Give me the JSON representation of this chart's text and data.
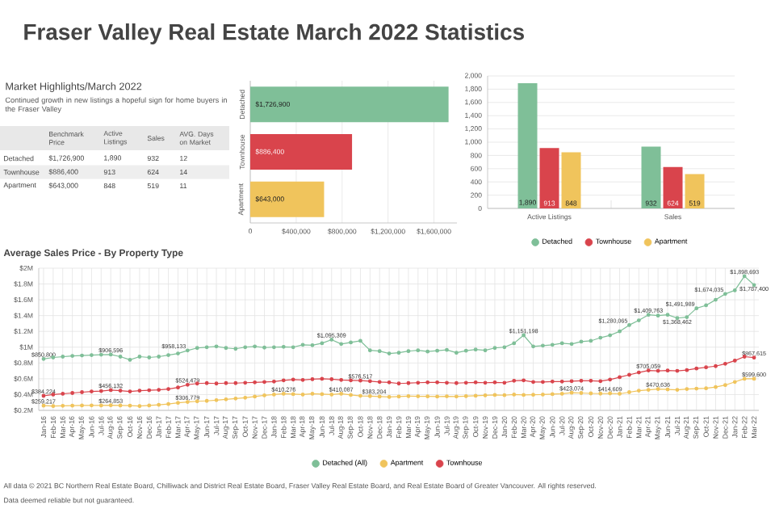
{
  "chart_data": [
    {
      "type": "other",
      "title": "Fraser Valley Real Estate March 2022 Statistics",
      "subtitle": "Market Highlights/March 2022",
      "annotations": [
        "Continued growth in new listings a hopeful sign for home buyers in the Fraser Valley"
      ],
      "categories": [
        "Benchmark Price",
        "Active Listings",
        "Sales",
        "AVG. Days on Market"
      ],
      "y_categories": [
        "Detached",
        "Townhouse",
        "Apartment"
      ],
      "cell_labels": [
        [
          "$1,726,900",
          "1,890",
          "932",
          "12"
        ],
        [
          "$886,400",
          "913",
          "624",
          "14"
        ],
        [
          "$643,000",
          "848",
          "519",
          "11"
        ]
      ]
    },
    {
      "type": "bar",
      "orientation": "horizontal",
      "categories": [
        "Detached",
        "Townhouse",
        "Apartment"
      ],
      "values": [
        1726900,
        886400,
        643000
      ],
      "colors": [
        "#7fbf98",
        "#d9444c",
        "#f0c45c"
      ],
      "value_labels": [
        "$1,726,900",
        "$886,400",
        "$643,000"
      ],
      "xlim": [
        0,
        1800000
      ],
      "xticks": [
        0,
        {
          "value": 400000,
          "label": "$400,000"
        },
        {
          "value": 800000,
          "label": "$800,000"
        },
        {
          "value": 1200000,
          "label": "$1,200,000"
        },
        {
          "value": 1600000,
          "label": "$1,600,000"
        }
      ],
      "grid": "x"
    },
    {
      "type": "bar",
      "categories": [
        "Active Listings",
        "Sales"
      ],
      "series": [
        {
          "name": "Detached",
          "color": "#7fbf98",
          "values": [
            1890,
            932
          ],
          "value_labels": [
            "1,890",
            "932"
          ]
        },
        {
          "name": "Townhouse",
          "color": "#d9444c",
          "values": [
            913,
            624
          ],
          "value_labels": [
            "913",
            "624"
          ]
        },
        {
          "name": "Apartment",
          "color": "#f0c45c",
          "values": [
            848,
            519
          ],
          "value_labels": [
            "848",
            "519"
          ]
        }
      ],
      "ylim": [
        0,
        2000
      ],
      "yticks": [
        0,
        200,
        400,
        600,
        800,
        {
          "value": 1000,
          "label": "1,000"
        },
        {
          "value": 1200,
          "label": "1,200"
        },
        {
          "value": 1400,
          "label": "1,400"
        },
        {
          "value": 1600,
          "label": "1,600"
        },
        {
          "value": 1800,
          "label": "1,800"
        },
        {
          "value": 2000,
          "label": "2,000"
        }
      ],
      "grid": "y",
      "legend": "bottom"
    },
    {
      "type": "line",
      "title": "Average Sales Price - By Property Type",
      "marker": "circle",
      "grid": true,
      "legend": "bottom",
      "categories": [
        "Jan-16",
        "Feb-16",
        "Mar-16",
        "Apr-16",
        "May-16",
        "Jun-16",
        "Jul-16",
        "Aug-16",
        "Sep-16",
        "Oct-16",
        "Nov-16",
        "Dec-16",
        "Jan-17",
        "Feb-17",
        "Mar-17",
        "Apr-17",
        "May-17",
        "Jun-17",
        "Jul-17",
        "Aug-17",
        "Sep-17",
        "Oct-17",
        "Nov-17",
        "Dec-17",
        "Jan-18",
        "Feb-18",
        "Mar-18",
        "Apr-18",
        "May-18",
        "Jun-18",
        "Jul-18",
        "Aug-18",
        "Sep-18",
        "Oct-18",
        "Nov-18",
        "Dec-18",
        "Jan-19",
        "Feb-19",
        "Mar-19",
        "Apr-19",
        "May-19",
        "Jun-19",
        "Jul-19",
        "Aug-19",
        "Sep-19",
        "Oct-19",
        "Nov-19",
        "Dec-19",
        "Jan-20",
        "Feb-20",
        "Mar-20",
        "Apr-20",
        "May-20",
        "Jun-20",
        "Jul-20",
        "Aug-20",
        "Sep-20",
        "Oct-20",
        "Nov-20",
        "Dec-20",
        "Jan-21",
        "Feb-21",
        "Mar-21",
        "Apr-21",
        "May-21",
        "Jun-21",
        "Jul-21",
        "Aug-21",
        "Sep-21",
        "Oct-21",
        "Nov-21",
        "Dec-21",
        "Jan-22",
        "Feb-22",
        "Mar-22"
      ],
      "series": [
        {
          "name": "Detached (All)",
          "color": "#7fbf98",
          "values": [
            850800,
            870000,
            880000,
            890000,
            895000,
            900000,
            905000,
            906596,
            880000,
            840000,
            880000,
            870000,
            880000,
            900000,
            920000,
            958133,
            990000,
            1000000,
            1010000,
            990000,
            980000,
            1000000,
            1010000,
            995000,
            1000000,
            1005000,
            1000000,
            1030000,
            1025000,
            1050000,
            1095309,
            1040000,
            1060000,
            1080000,
            960000,
            950000,
            920000,
            930000,
            950000,
            960000,
            945000,
            955000,
            965000,
            930000,
            955000,
            970000,
            960000,
            990000,
            1000000,
            1050000,
            1151198,
            1010000,
            1020000,
            1030000,
            1050000,
            1040000,
            1070000,
            1080000,
            1120000,
            1150000,
            1200000,
            1280065,
            1340000,
            1409763,
            1400000,
            1410000,
            1368462,
            1380000,
            1491989,
            1530000,
            1600000,
            1674035,
            1720000,
            1898693,
            1787400
          ],
          "value_labels": [
            "$850,800",
            null,
            null,
            null,
            null,
            null,
            null,
            "$906,596",
            null,
            null,
            null,
            null,
            null,
            null,
            null,
            "$958,133",
            null,
            null,
            null,
            null,
            null,
            null,
            null,
            null,
            null,
            null,
            null,
            null,
            null,
            null,
            "$1,095,309",
            null,
            null,
            null,
            null,
            null,
            null,
            null,
            null,
            null,
            null,
            null,
            null,
            null,
            null,
            null,
            null,
            null,
            null,
            null,
            "$1,151,198",
            null,
            null,
            null,
            null,
            null,
            null,
            null,
            null,
            null,
            null,
            "$1,280,065",
            null,
            "$1,409,763",
            null,
            null,
            "$1,368,462",
            null,
            "$1,491,989",
            null,
            null,
            "$1,674,035",
            null,
            "$1,898,693",
            "$1,787,400"
          ]
        },
        {
          "name": "Apartment",
          "color": "#f0c45c",
          "values": [
            259217,
            255000,
            258000,
            260000,
            262000,
            263000,
            262000,
            264853,
            262000,
            260000,
            255000,
            262000,
            270000,
            280000,
            295000,
            306779,
            315000,
            320000,
            330000,
            340000,
            350000,
            360000,
            375000,
            390000,
            400000,
            410276,
            405000,
            400000,
            410000,
            405000,
            400000,
            410087,
            395000,
            383204,
            380000,
            375000,
            370000,
            375000,
            380000,
            378000,
            377000,
            375000,
            378000,
            376000,
            380000,
            385000,
            390000,
            395000,
            392000,
            400000,
            395000,
            398000,
            400000,
            405000,
            410000,
            423074,
            420000,
            415000,
            412000,
            414609,
            410000,
            430000,
            450000,
            460000,
            470636,
            465000,
            460000,
            470000,
            475000,
            480000,
            495000,
            520000,
            560000,
            600000,
            599600
          ],
          "value_labels": [
            "$259,217",
            null,
            null,
            null,
            null,
            null,
            null,
            "$264,853",
            null,
            null,
            null,
            null,
            null,
            null,
            null,
            "$306,779",
            null,
            null,
            null,
            null,
            null,
            null,
            null,
            null,
            null,
            "$410,276",
            null,
            null,
            null,
            null,
            null,
            "$410,087",
            null,
            "$383,204",
            null,
            null,
            null,
            null,
            null,
            null,
            null,
            null,
            null,
            null,
            null,
            null,
            null,
            null,
            null,
            null,
            null,
            null,
            null,
            null,
            null,
            "$423,074",
            null,
            null,
            null,
            "$414,609",
            null,
            null,
            null,
            null,
            "$470,636",
            null,
            null,
            null,
            null,
            null,
            null,
            null,
            null,
            null,
            "$599,600"
          ]
        },
        {
          "name": "Townhouse",
          "color": "#d9444c",
          "values": [
            384224,
            400000,
            410000,
            420000,
            430000,
            440000,
            445000,
            456132,
            450000,
            440000,
            450000,
            455000,
            460000,
            470000,
            490000,
            524479,
            540000,
            545000,
            540000,
            545000,
            545000,
            550000,
            555000,
            560000,
            565000,
            580000,
            590000,
            585000,
            595000,
            600000,
            595000,
            585000,
            580000,
            576517,
            570000,
            560000,
            555000,
            540000,
            545000,
            550000,
            555000,
            555000,
            550000,
            545000,
            550000,
            555000,
            550000,
            555000,
            550000,
            575000,
            580000,
            560000,
            560000,
            565000,
            565000,
            570000,
            575000,
            575000,
            570000,
            590000,
            620000,
            650000,
            680000,
            705059,
            700000,
            705000,
            700000,
            710000,
            730000,
            745000,
            760000,
            790000,
            830000,
            880000,
            867615
          ],
          "value_labels": [
            "$384,224",
            null,
            null,
            null,
            null,
            null,
            null,
            "$456,132",
            null,
            null,
            null,
            null,
            null,
            null,
            null,
            "$524,479",
            null,
            null,
            null,
            null,
            null,
            null,
            null,
            null,
            null,
            null,
            null,
            null,
            null,
            null,
            null,
            null,
            null,
            "$576,517",
            null,
            null,
            null,
            null,
            null,
            null,
            null,
            null,
            null,
            null,
            null,
            null,
            null,
            null,
            null,
            null,
            null,
            null,
            null,
            null,
            null,
            null,
            null,
            null,
            null,
            null,
            null,
            null,
            null,
            "$705,059",
            null,
            null,
            null,
            null,
            null,
            null,
            null,
            null,
            null,
            null,
            "$867,615"
          ]
        }
      ],
      "ylim": [
        200000,
        2000000
      ],
      "yticks": [
        {
          "value": 200000,
          "label": "$0.2M"
        },
        {
          "value": 400000,
          "label": "$0.4M"
        },
        {
          "value": 600000,
          "label": "$0.6M"
        },
        {
          "value": 800000,
          "label": "$0.8M"
        },
        {
          "value": 1000000,
          "label": "$1M"
        },
        {
          "value": 1200000,
          "label": "$1.2M"
        },
        {
          "value": 1400000,
          "label": "$1.4M"
        },
        {
          "value": 1600000,
          "label": "$1.6M"
        },
        {
          "value": 1800000,
          "label": "$1.8M"
        },
        {
          "value": 2000000,
          "label": "$2M"
        }
      ],
      "annotations": [
        "All data © 2021 BC Northern Real Estate Board, Chilliwack and District Real Estate Board, Fraser Valley Real Estate Board, and Real Estate Board of Greater Vancouver. All rights reserved.",
        "Data deemed reliable but not guaranteed."
      ]
    }
  ]
}
